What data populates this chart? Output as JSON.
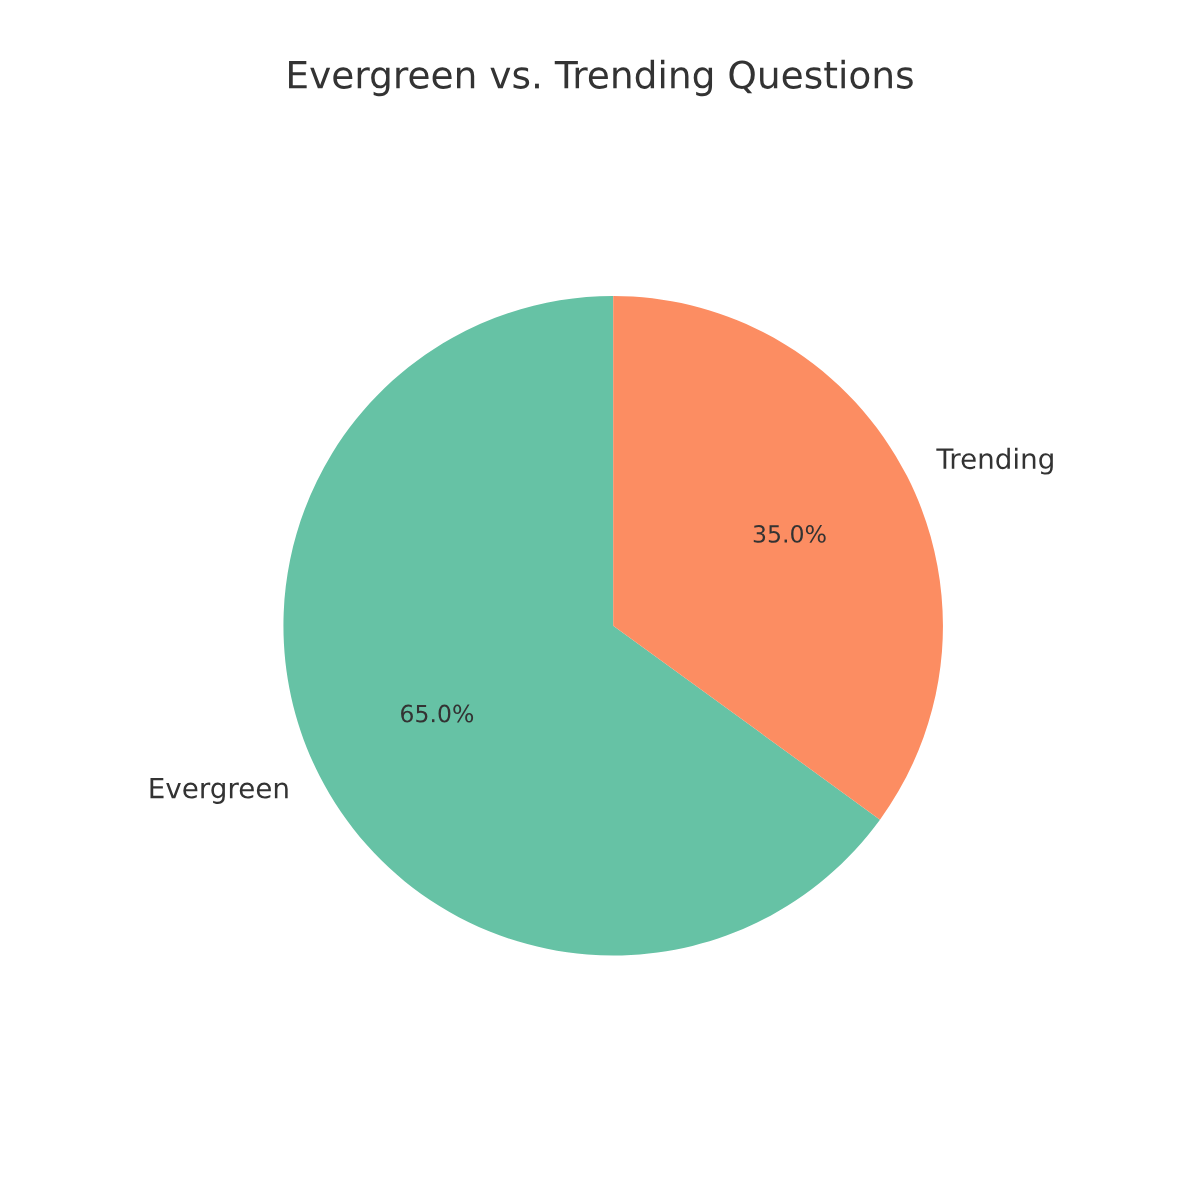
{
  "chart_data": {
    "type": "pie",
    "title": "Evergreen vs. Trending Questions",
    "categories": [
      "Evergreen",
      "Trending"
    ],
    "values": [
      65,
      35
    ],
    "value_labels": [
      "65.0%",
      "35.0%"
    ],
    "colors": [
      "#66c2a5",
      "#fc8d62"
    ]
  }
}
